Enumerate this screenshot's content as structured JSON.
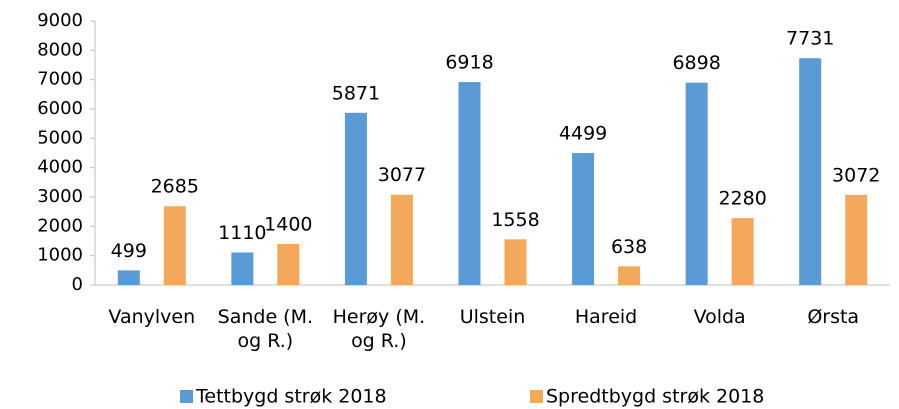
{
  "chart_data": {
    "type": "bar",
    "categories": [
      "Vanylven",
      "Sande (M. og R.)",
      "Herøy (M. og R.)",
      "Ulstein",
      "Hareid",
      "Volda",
      "Ørsta"
    ],
    "series": [
      {
        "name": "Tettbygd strøk 2018",
        "color": "#5b9bd5",
        "values": [
          499,
          1110,
          5871,
          6918,
          4499,
          6898,
          7731
        ]
      },
      {
        "name": "Spredtbygd strøk 2018",
        "color": "#f4a85b",
        "values": [
          2685,
          1400,
          3077,
          1558,
          638,
          2280,
          3072
        ]
      }
    ],
    "ylim": [
      0,
      9000
    ],
    "yticks": [
      0,
      1000,
      2000,
      3000,
      4000,
      5000,
      6000,
      7000,
      8000,
      9000
    ],
    "grid": false,
    "legend": "bottom"
  }
}
